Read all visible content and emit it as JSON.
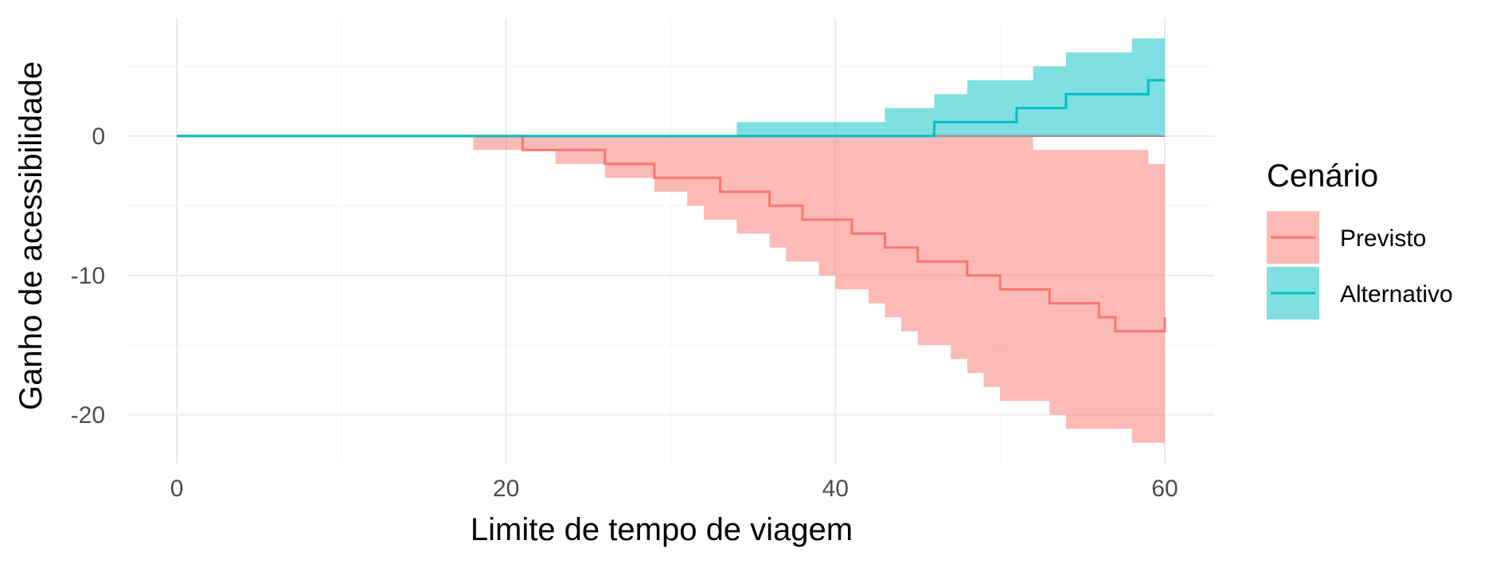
{
  "chart_data": {
    "type": "area",
    "title": "",
    "xlabel": "Limite de tempo de viagem",
    "ylabel": "Ganho de acessibilidade",
    "xlim": [
      -3,
      63
    ],
    "ylim": [
      -23.5,
      8.5
    ],
    "x_ticks": [
      0,
      20,
      40,
      60
    ],
    "x_tick_labels": [
      "0",
      "20",
      "40",
      "60"
    ],
    "y_ticks": [
      -20,
      -10,
      0
    ],
    "y_tick_labels": [
      "-20",
      "-10",
      "0"
    ],
    "grid": true,
    "legend": {
      "title": "Cenário",
      "position": "right",
      "entries": [
        "Previsto",
        "Alternativo"
      ]
    },
    "x": [
      0,
      1,
      2,
      3,
      4,
      5,
      6,
      7,
      8,
      9,
      10,
      11,
      12,
      13,
      14,
      15,
      16,
      17,
      18,
      19,
      20,
      21,
      22,
      23,
      24,
      25,
      26,
      27,
      28,
      29,
      30,
      31,
      32,
      33,
      34,
      35,
      36,
      37,
      38,
      39,
      40,
      41,
      42,
      43,
      44,
      45,
      46,
      47,
      48,
      49,
      50,
      51,
      52,
      53,
      54,
      55,
      56,
      57,
      58,
      59,
      60
    ],
    "series": [
      {
        "name": "Previsto",
        "color": "#F8766D",
        "median": [
          0,
          0,
          0,
          0,
          0,
          0,
          0,
          0,
          0,
          0,
          0,
          0,
          0,
          0,
          0,
          0,
          0,
          0,
          0,
          0,
          0,
          -1,
          -1,
          -1,
          -1,
          -1,
          -2,
          -2,
          -2,
          -3,
          -3,
          -3,
          -3,
          -4,
          -4,
          -4,
          -5,
          -5,
          -6,
          -6,
          -6,
          -7,
          -7,
          -8,
          -8,
          -9,
          -9,
          -9,
          -10,
          -10,
          -11,
          -11,
          -11,
          -12,
          -12,
          -12,
          -13,
          -14,
          -14,
          -14,
          -13
        ],
        "lower": [
          0,
          0,
          0,
          0,
          0,
          0,
          0,
          0,
          0,
          0,
          0,
          0,
          0,
          0,
          0,
          0,
          0,
          0,
          -1,
          -1,
          -1,
          -1,
          -1,
          -2,
          -2,
          -2,
          -3,
          -3,
          -3,
          -4,
          -4,
          -5,
          -6,
          -6,
          -7,
          -7,
          -8,
          -9,
          -9,
          -10,
          -11,
          -11,
          -12,
          -13,
          -14,
          -15,
          -15,
          -16,
          -17,
          -18,
          -19,
          -19,
          -19,
          -20,
          -21,
          -21,
          -21,
          -21,
          -22,
          -22,
          -22
        ],
        "upper": [
          0,
          0,
          0,
          0,
          0,
          0,
          0,
          0,
          0,
          0,
          0,
          0,
          0,
          0,
          0,
          0,
          0,
          0,
          0,
          0,
          0,
          0,
          0,
          0,
          0,
          0,
          0,
          0,
          0,
          0,
          0,
          0,
          0,
          0,
          0,
          0,
          0,
          0,
          0,
          0,
          0,
          0,
          0,
          0,
          0,
          0,
          0,
          0,
          0,
          0,
          0,
          0,
          -1,
          -1,
          -1,
          -1,
          -1,
          -1,
          -1,
          -2,
          -2
        ]
      },
      {
        "name": "Alternativo",
        "color": "#00BFC4",
        "median": [
          0,
          0,
          0,
          0,
          0,
          0,
          0,
          0,
          0,
          0,
          0,
          0,
          0,
          0,
          0,
          0,
          0,
          0,
          0,
          0,
          0,
          0,
          0,
          0,
          0,
          0,
          0,
          0,
          0,
          0,
          0,
          0,
          0,
          0,
          0,
          0,
          0,
          0,
          0,
          0,
          0,
          0,
          0,
          0,
          0,
          0,
          1,
          1,
          1,
          1,
          1,
          2,
          2,
          2,
          3,
          3,
          3,
          3,
          3,
          4,
          4
        ],
        "lower": [
          0,
          0,
          0,
          0,
          0,
          0,
          0,
          0,
          0,
          0,
          0,
          0,
          0,
          0,
          0,
          0,
          0,
          0,
          0,
          0,
          0,
          0,
          0,
          0,
          0,
          0,
          0,
          0,
          0,
          0,
          0,
          0,
          0,
          0,
          0,
          0,
          0,
          0,
          0,
          0,
          0,
          0,
          0,
          0,
          0,
          0,
          0,
          0,
          0,
          0,
          0,
          0,
          0,
          0,
          0,
          0,
          0,
          0,
          0,
          0,
          0
        ],
        "upper": [
          0,
          0,
          0,
          0,
          0,
          0,
          0,
          0,
          0,
          0,
          0,
          0,
          0,
          0,
          0,
          0,
          0,
          0,
          0,
          0,
          0,
          0,
          0,
          0,
          0,
          0,
          0,
          0,
          0,
          0,
          0,
          0,
          0,
          0,
          1,
          1,
          1,
          1,
          1,
          1,
          1,
          1,
          1,
          2,
          2,
          2,
          3,
          3,
          4,
          4,
          4,
          4,
          5,
          5,
          6,
          6,
          6,
          6,
          7,
          7,
          7
        ]
      }
    ]
  }
}
